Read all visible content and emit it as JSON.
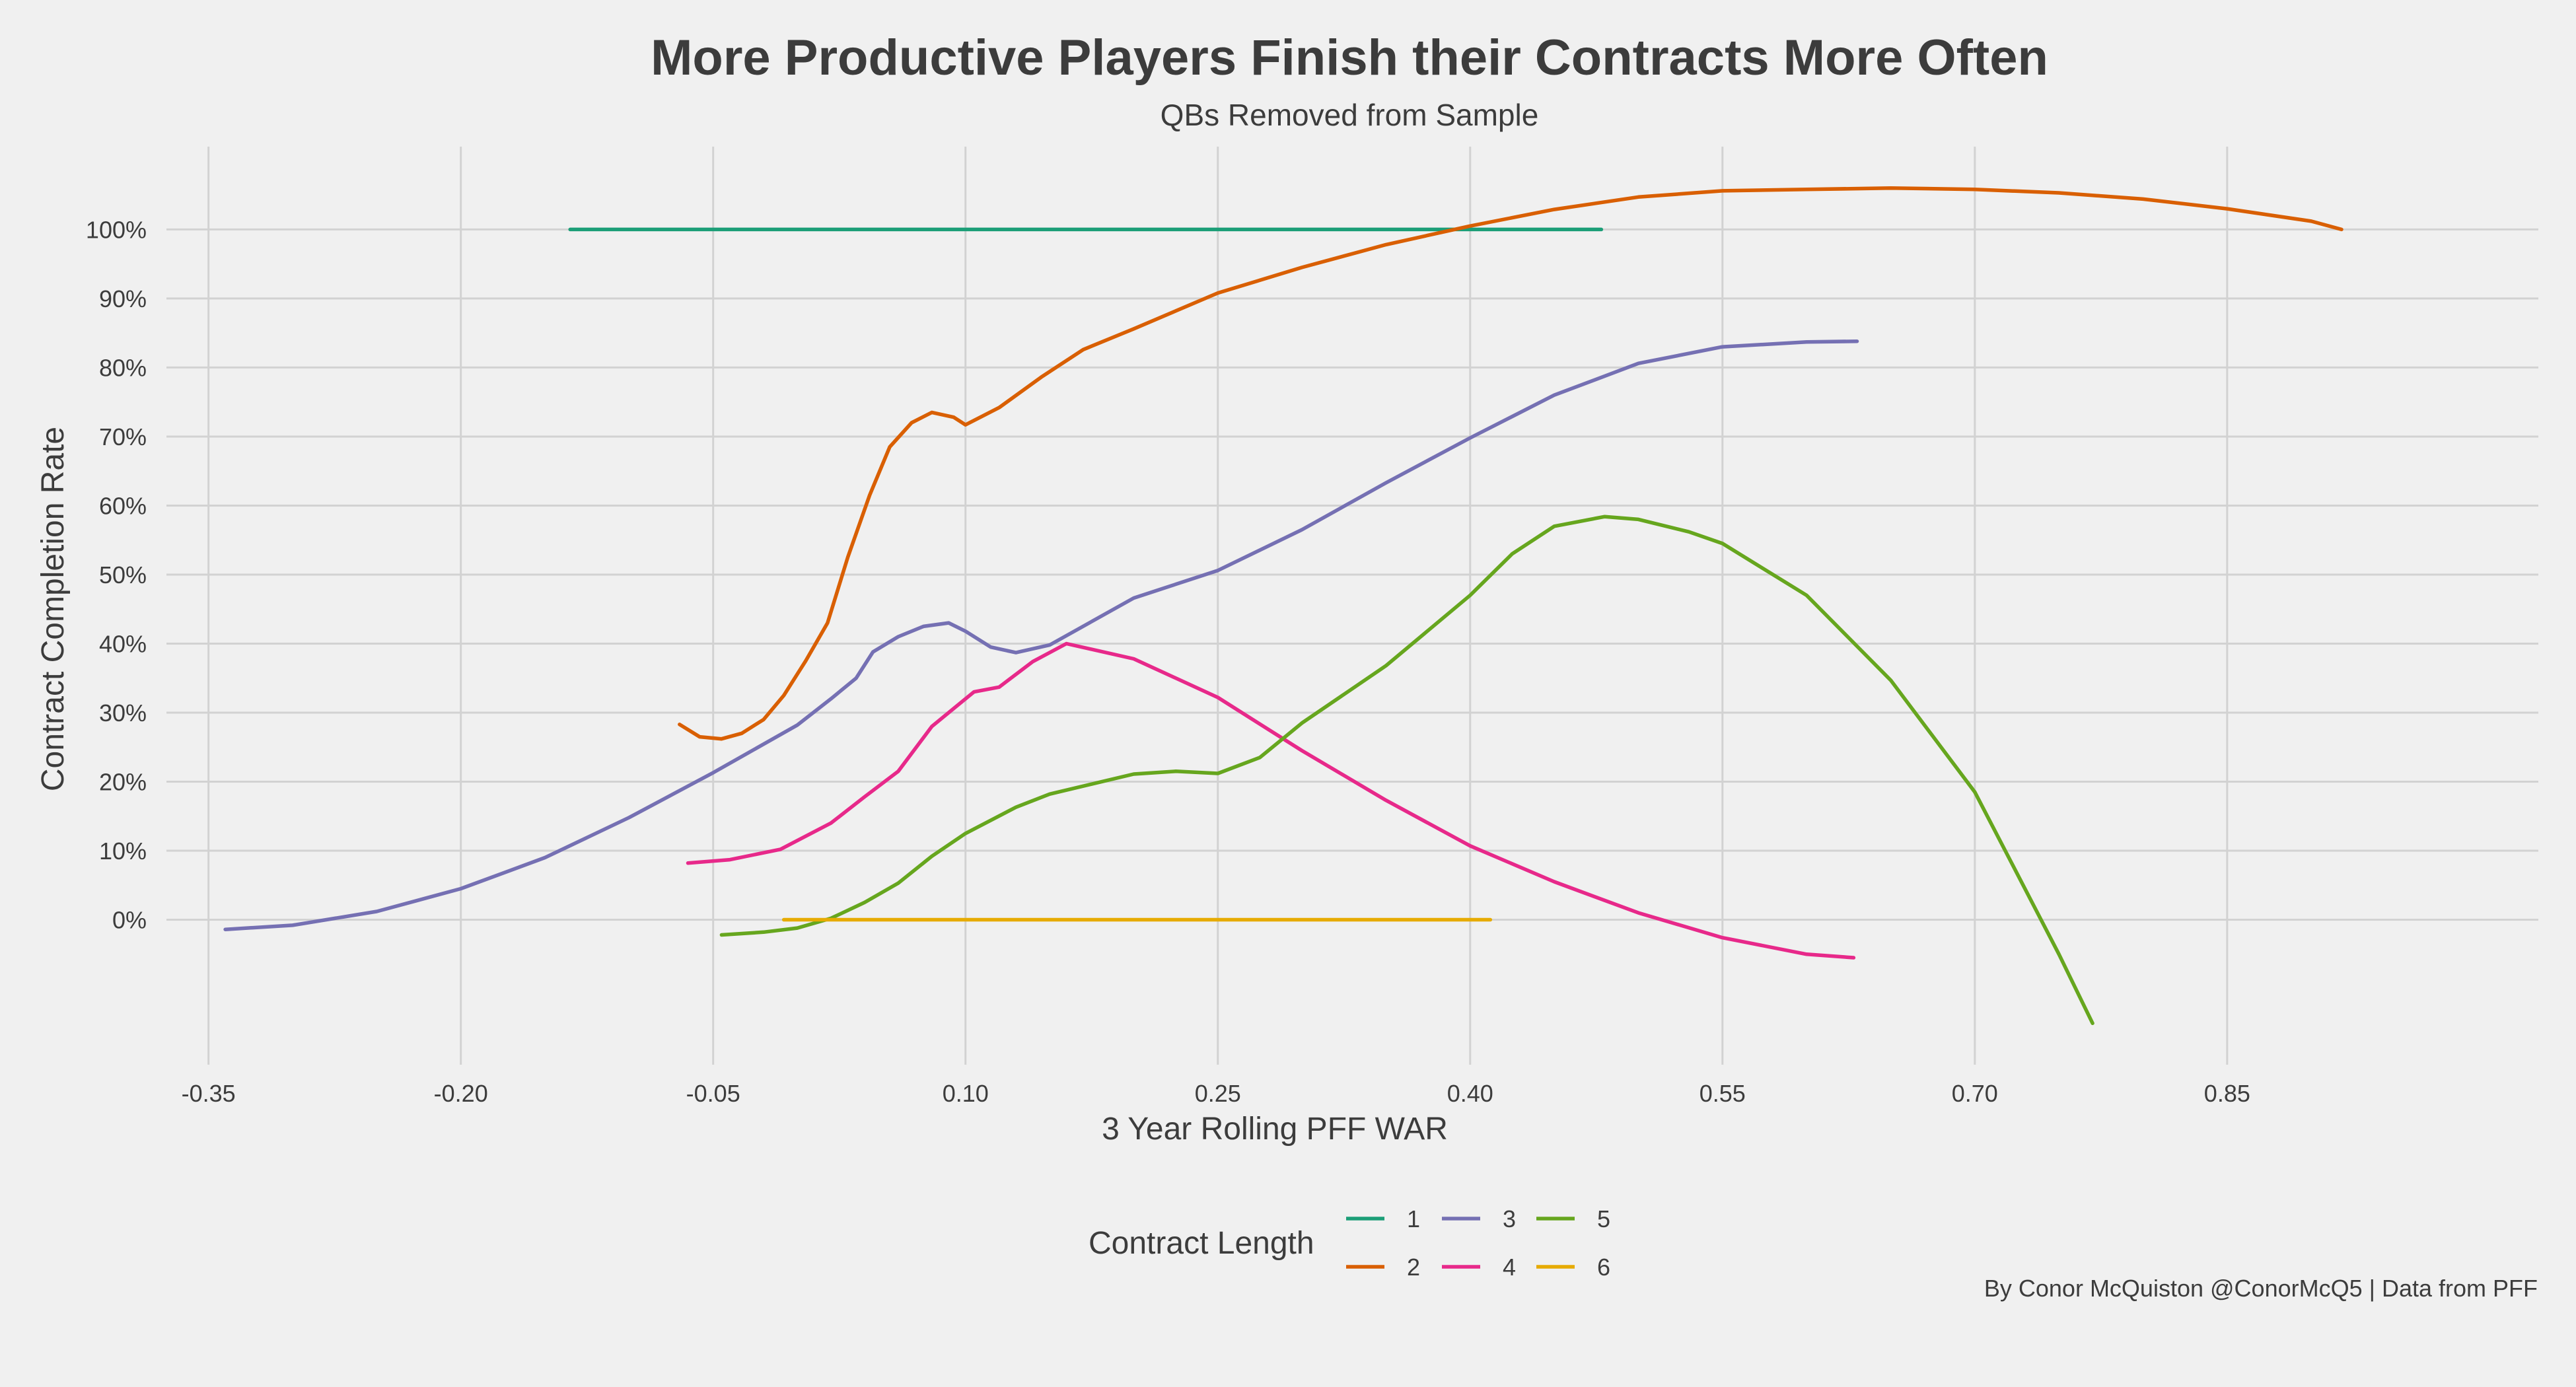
{
  "chart_data": {
    "type": "line",
    "title": "More Productive Players Finish their Contracts More Often",
    "subtitle": "QBs Removed from Sample",
    "xlabel": "3 Year Rolling PFF WAR",
    "ylabel": "Contract Completion Rate",
    "caption": "By Conor McQuiston @ConorMcQ5 | Data from PFF",
    "xlim": [
      -0.375,
      1.035
    ],
    "ylim": [
      -0.21,
      1.12
    ],
    "x_ticks": [
      -0.35,
      -0.2,
      -0.05,
      0.1,
      0.25,
      0.4,
      0.55,
      0.7,
      0.85
    ],
    "x_tick_labels": [
      "-0.35",
      "-0.20",
      "-0.05",
      "0.10",
      "0.25",
      "0.40",
      "0.55",
      "0.70",
      "0.85"
    ],
    "y_ticks": [
      0,
      0.1,
      0.2,
      0.3,
      0.4,
      0.5,
      0.6,
      0.7,
      0.8,
      0.9,
      1.0
    ],
    "y_tick_labels": [
      "0%",
      "10%",
      "20%",
      "30%",
      "40%",
      "50%",
      "60%",
      "70%",
      "80%",
      "90%",
      "100%"
    ],
    "grid": true,
    "legend": {
      "title": "Contract Length",
      "position": "bottom",
      "ncol": 3
    },
    "series": [
      {
        "name": "1",
        "color": "#1b9e77",
        "x": [
          -0.135,
          0.478
        ],
        "y": [
          1.0,
          1.0
        ]
      },
      {
        "name": "2",
        "color": "#d95f02",
        "x": [
          -0.07,
          -0.058,
          -0.045,
          -0.033,
          -0.02,
          -0.008,
          0.005,
          0.018,
          0.03,
          0.043,
          0.055,
          0.068,
          0.08,
          0.093,
          0.1,
          0.12,
          0.145,
          0.17,
          0.2,
          0.25,
          0.3,
          0.35,
          0.4,
          0.45,
          0.5,
          0.55,
          0.6,
          0.65,
          0.7,
          0.75,
          0.8,
          0.85,
          0.9,
          0.918
        ],
        "y": [
          0.283,
          0.265,
          0.262,
          0.27,
          0.29,
          0.325,
          0.375,
          0.43,
          0.525,
          0.615,
          0.685,
          0.72,
          0.735,
          0.728,
          0.717,
          0.742,
          0.786,
          0.826,
          0.856,
          0.908,
          0.945,
          0.978,
          1.005,
          1.029,
          1.047,
          1.056,
          1.058,
          1.06,
          1.058,
          1.053,
          1.044,
          1.03,
          1.012,
          1.0
        ]
      },
      {
        "name": "3",
        "color": "#7570b3",
        "x": [
          -0.34,
          -0.3,
          -0.25,
          -0.2,
          -0.15,
          -0.1,
          -0.05,
          0.0,
          0.02,
          0.035,
          0.045,
          0.06,
          0.075,
          0.09,
          0.1,
          0.115,
          0.13,
          0.15,
          0.2,
          0.25,
          0.3,
          0.35,
          0.4,
          0.45,
          0.5,
          0.55,
          0.6,
          0.63
        ],
        "y": [
          -0.014,
          -0.008,
          0.012,
          0.045,
          0.09,
          0.148,
          0.213,
          0.282,
          0.32,
          0.35,
          0.388,
          0.41,
          0.425,
          0.43,
          0.418,
          0.395,
          0.387,
          0.398,
          0.466,
          0.506,
          0.565,
          0.633,
          0.698,
          0.76,
          0.806,
          0.83,
          0.837,
          0.838
        ]
      },
      {
        "name": "4",
        "color": "#e7298a",
        "x": [
          -0.065,
          -0.04,
          -0.01,
          0.02,
          0.04,
          0.06,
          0.08,
          0.095,
          0.105,
          0.12,
          0.14,
          0.16,
          0.2,
          0.25,
          0.3,
          0.35,
          0.4,
          0.45,
          0.5,
          0.55,
          0.6,
          0.628
        ],
        "y": [
          0.082,
          0.087,
          0.102,
          0.14,
          0.178,
          0.215,
          0.28,
          0.31,
          0.33,
          0.337,
          0.374,
          0.4,
          0.378,
          0.322,
          0.245,
          0.173,
          0.107,
          0.055,
          0.01,
          -0.026,
          -0.05,
          -0.055
        ]
      },
      {
        "name": "5",
        "color": "#66a61e",
        "x": [
          -0.045,
          -0.02,
          0.0,
          0.02,
          0.04,
          0.06,
          0.08,
          0.1,
          0.13,
          0.15,
          0.2,
          0.225,
          0.25,
          0.275,
          0.3,
          0.35,
          0.4,
          0.425,
          0.45,
          0.48,
          0.5,
          0.53,
          0.55,
          0.6,
          0.65,
          0.7,
          0.75,
          0.77
        ],
        "y": [
          -0.022,
          -0.018,
          -0.012,
          0.002,
          0.025,
          0.053,
          0.092,
          0.125,
          0.163,
          0.182,
          0.211,
          0.215,
          0.212,
          0.235,
          0.285,
          0.368,
          0.47,
          0.53,
          0.57,
          0.584,
          0.58,
          0.562,
          0.545,
          0.47,
          0.347,
          0.185,
          -0.05,
          -0.15
        ]
      },
      {
        "name": "6",
        "color": "#e6ab02",
        "x": [
          -0.008,
          0.412
        ],
        "y": [
          0.0,
          0.0
        ]
      }
    ]
  }
}
